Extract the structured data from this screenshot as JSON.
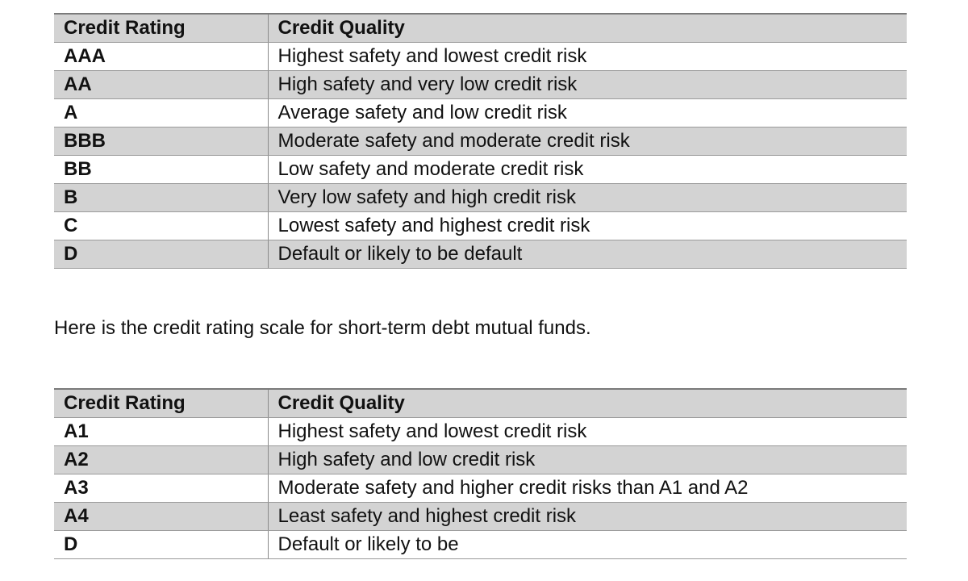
{
  "long_term_table": {
    "headers": [
      "Credit Rating",
      "Credit Quality"
    ],
    "rows": [
      {
        "rating": "AAA",
        "quality": "Highest safety and lowest credit risk"
      },
      {
        "rating": "AA",
        "quality": "High safety and very low credit risk"
      },
      {
        "rating": "A",
        "quality": "Average safety and low credit risk"
      },
      {
        "rating": "BBB",
        "quality": "Moderate safety and moderate credit risk"
      },
      {
        "rating": "BB",
        "quality": "Low safety and moderate credit risk"
      },
      {
        "rating": "B",
        "quality": "Very low safety and high credit risk"
      },
      {
        "rating": "C",
        "quality": "Lowest safety and highest credit risk"
      },
      {
        "rating": "D",
        "quality": "Default or likely to be default"
      }
    ]
  },
  "intro_text": "Here is the credit rating scale for short-term debt mutual funds.",
  "short_term_table": {
    "headers": [
      "Credit Rating",
      "Credit Quality"
    ],
    "rows": [
      {
        "rating": "A1",
        "quality": "Highest safety and lowest credit risk"
      },
      {
        "rating": "A2",
        "quality": "High safety and low credit risk"
      },
      {
        "rating": "A3",
        "quality": "Moderate safety and higher credit risks than A1 and A2"
      },
      {
        "rating": "A4",
        "quality": "Least safety and highest credit risk"
      },
      {
        "rating": "D",
        "quality": "Default or likely to be"
      }
    ]
  },
  "colors": {
    "shaded_row": "#d3d3d3",
    "rule": "#9a9a9a",
    "text": "#111111"
  }
}
